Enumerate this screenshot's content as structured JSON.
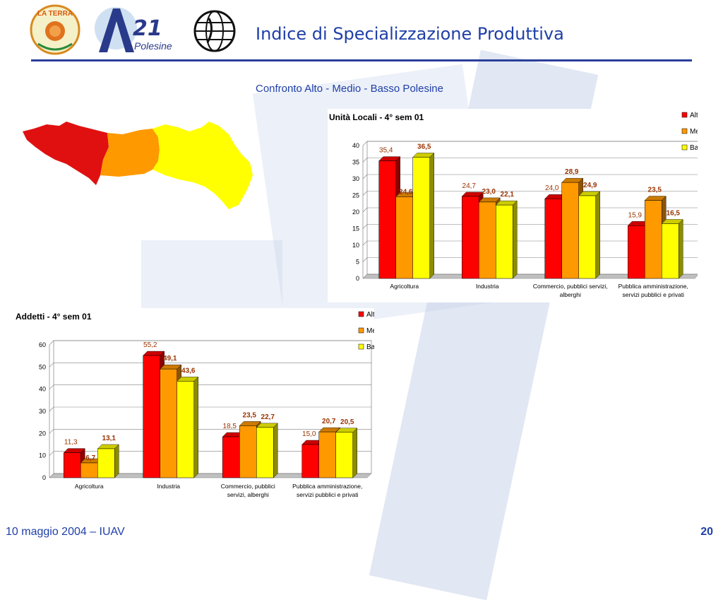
{
  "header": {
    "title": "Indice di Specializzazione Produttiva",
    "subtitle": "Confronto Alto - Medio - Basso Polesine",
    "logo_a21_number": "21",
    "logo_a21_text": "Polesine",
    "logo_laterra_text": "LA TERRA"
  },
  "footer": {
    "date_label": "10 maggio 2004  – IUAV",
    "page_number": "20"
  },
  "colors": {
    "accent": "#1f3fa8",
    "alto": "#ff0000",
    "medio": "#ff9900",
    "basso": "#ffff00",
    "label_text": "#993300"
  },
  "map": {
    "regions": [
      "Alto",
      "Medio",
      "Basso"
    ]
  },
  "chart_data": [
    {
      "type": "bar",
      "title": "Unità Locali - 4° sem 01",
      "categories": [
        "Agricoltura",
        "Industria",
        "Commercio, pubblici servizi, alberghi",
        "Pubblica amministrazione, servizi pubblici e privati"
      ],
      "category_lines": [
        [
          "Agricoltura"
        ],
        [
          "Industria"
        ],
        [
          "Commercio, pubblici servizi,",
          "alberghi"
        ],
        [
          "Pubblica amministrazione,",
          "servizi pubblici e privati"
        ]
      ],
      "series": [
        {
          "name": "Alto",
          "values": [
            35.4,
            24.7,
            24.0,
            15.9
          ],
          "labels": [
            "35,4",
            "24,7",
            "24,0",
            "15,9"
          ]
        },
        {
          "name": "Medio",
          "values": [
            24.6,
            23.0,
            28.9,
            23.5
          ],
          "labels": [
            "24,6",
            "23,0",
            "28,9",
            "23,5"
          ]
        },
        {
          "name": "Basso",
          "values": [
            36.5,
            22.1,
            24.9,
            16.5
          ],
          "labels": [
            "36,5",
            "22,1",
            "24,9",
            "16,5"
          ]
        }
      ],
      "ylim": [
        0,
        40
      ],
      "yticks": [
        0,
        5,
        10,
        15,
        20,
        25,
        30,
        35,
        40
      ],
      "legend": "top-right",
      "grid": true
    },
    {
      "type": "bar",
      "title": "Addetti - 4° sem 01",
      "categories": [
        "Agricoltura",
        "Industria",
        "Commercio, pubblici servizi, alberghi",
        "Pubblica amministrazione, servizi pubblici e privati"
      ],
      "category_lines": [
        [
          "Agricoltura"
        ],
        [
          "Industria"
        ],
        [
          "Commercio, pubblici",
          "servizi, alberghi"
        ],
        [
          "Pubblica amministrazione,",
          "servizi pubblici e privati"
        ]
      ],
      "series": [
        {
          "name": "Alto",
          "values": [
            11.3,
            55.2,
            18.5,
            15.0
          ],
          "labels": [
            "11,3",
            "55,2",
            "18,5",
            "15,0"
          ]
        },
        {
          "name": "Medio",
          "values": [
            6.7,
            49.1,
            23.5,
            20.7
          ],
          "labels": [
            "6,7",
            "49,1",
            "23,5",
            "20,7"
          ]
        },
        {
          "name": "Basso",
          "values": [
            13.1,
            43.6,
            22.7,
            20.5
          ],
          "labels": [
            "13,1",
            "43,6",
            "22,7",
            "20,5"
          ]
        }
      ],
      "ylim": [
        0,
        60
      ],
      "yticks": [
        0,
        10,
        20,
        30,
        40,
        50,
        60
      ],
      "legend": "top-right",
      "grid": true
    }
  ]
}
